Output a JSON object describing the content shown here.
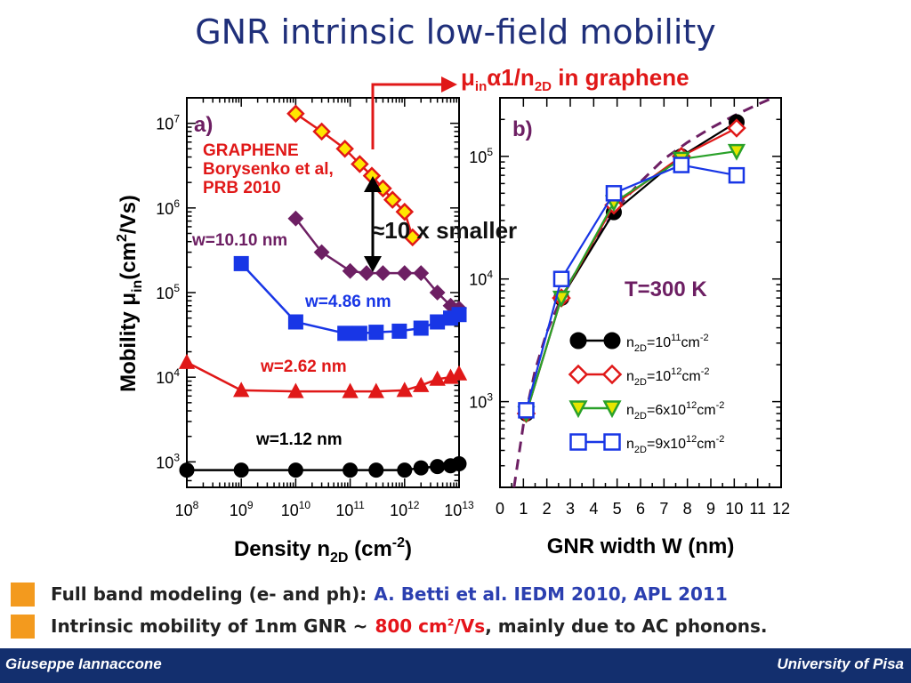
{
  "slide": {
    "title": "GNR intrinsic low-field mobility",
    "annotation_red": {
      "mu": "μ",
      "mu_sub": "in",
      "alpha": "α1/n",
      "n_sub": "2D",
      "tail": " in graphene"
    },
    "annotation_gap": "≈10 x smaller",
    "bullets": [
      {
        "text": "Full band modeling (e- and ph):",
        "highlight": "A. Betti et al. IEDM 2010, APL 2011",
        "highlight_color": "#2b3fb0"
      },
      {
        "text": "Intrinsic mobility of 1nm GNR ~",
        "highlight": "800 cm",
        "highlight_sup": "2",
        "highlight_tail": "/Vs",
        "rest": ", mainly due to AC phonons.",
        "highlight_color": "#e5141a"
      }
    ],
    "footer": {
      "left": "Giuseppe Iannaccone",
      "right": "University of Pisa"
    }
  },
  "colors": {
    "title": "#1f2f7a",
    "footer_bg": "#132f6e",
    "bullet": "#f39a1e",
    "red": "#e01818",
    "maroon": "#6d1f63",
    "blue": "#1836e6",
    "green": "#2aa12a"
  },
  "chart_data": [
    {
      "type": "line",
      "panel_label": "a)",
      "xlabel": "Density n2D (cm-2)",
      "ylabel": "Mobility μin(cm2/Vs)",
      "x_scale": "log",
      "y_scale": "log",
      "xlim": [
        100000000,
        10000000000000
      ],
      "ylim": [
        500,
        20000000
      ],
      "xticks": [
        "10^8",
        "10^9",
        "10^10",
        "10^11",
        "10^12",
        "10^13"
      ],
      "yticks": [
        "10^3",
        "10^4",
        "10^5",
        "10^6",
        "10^7"
      ],
      "inset_text": [
        "GRAPHENE",
        "Borysenko et al,",
        "PRB 2010"
      ],
      "series": [
        {
          "name": "GRAPHENE",
          "color": "#e01818",
          "marker": "diamond-open",
          "fill": "#ffe600",
          "x": [
            10000000000,
            30000000000,
            80000000000,
            150000000000,
            250000000000,
            400000000000,
            600000000000,
            1000000000000,
            1400000000000
          ],
          "y": [
            13000000,
            8000000,
            5000000,
            3300000,
            2400000,
            1700000,
            1250000,
            900000,
            450000
          ]
        },
        {
          "name": "w=10.10 nm",
          "color": "#6d1f63",
          "marker": "diamond",
          "x": [
            10000000000,
            30000000000,
            100000000000,
            200000000000,
            400000000000,
            1000000000000,
            2000000000000,
            4000000000000,
            7000000000000,
            10000000000000
          ],
          "y": [
            750000,
            300000,
            180000,
            170000,
            170000,
            170000,
            170000,
            100000,
            70000,
            65000
          ]
        },
        {
          "name": "w=4.86 nm",
          "color": "#1836e6",
          "marker": "square",
          "x": [
            1000000000,
            10000000000,
            80000000000,
            150000000000,
            300000000000,
            800000000000,
            2000000000000,
            4000000000000,
            7000000000000,
            10000000000000
          ],
          "y": [
            220000,
            45000,
            33000,
            33000,
            34000,
            35000,
            38000,
            45000,
            50000,
            55000
          ]
        },
        {
          "name": "w=2.62 nm",
          "color": "#e01818",
          "marker": "triangle",
          "x": [
            100000000,
            1000000000,
            10000000000,
            100000000000,
            300000000000,
            1000000000000,
            2000000000000,
            4000000000000,
            7000000000000,
            10000000000000
          ],
          "y": [
            15000,
            7000,
            6800,
            6800,
            6800,
            7000,
            8000,
            9500,
            10000,
            11000
          ]
        },
        {
          "name": "w=1.12 nm",
          "color": "#000000",
          "marker": "circle",
          "x": [
            100000000,
            1000000000,
            10000000000,
            100000000000,
            300000000000,
            1000000000000,
            2000000000000,
            4000000000000,
            7000000000000,
            10000000000000
          ],
          "y": [
            800,
            800,
            800,
            800,
            800,
            800,
            850,
            880,
            900,
            950
          ]
        }
      ]
    },
    {
      "type": "line",
      "panel_label": "b)",
      "xlabel": "GNR width W (nm)",
      "x_scale": "linear",
      "y_scale": "log",
      "xlim": [
        0,
        12
      ],
      "ylim": [
        200,
        300000
      ],
      "xticks": [
        "0",
        "1",
        "2",
        "3",
        "4",
        "5",
        "6",
        "7",
        "8",
        "9",
        "10",
        "11",
        "12"
      ],
      "yticks": [
        "10^3",
        "10^4",
        "10^5"
      ],
      "temperature": "T=300 K",
      "legend_position": "bottom-right",
      "series": [
        {
          "name": "n2D=10^11 cm^-2",
          "color": "#000000",
          "marker": "circle",
          "x": [
            1.12,
            2.62,
            4.86,
            7.74,
            10.1
          ],
          "y": [
            800,
            7000,
            35000,
            100000,
            190000
          ]
        },
        {
          "name": "n2D=10^12 cm^-2",
          "color": "#e01818",
          "marker": "diamond-open",
          "x": [
            1.12,
            2.62,
            4.86,
            7.74,
            10.1
          ],
          "y": [
            800,
            7000,
            40000,
            100000,
            170000
          ]
        },
        {
          "name": "n2D=6x10^12 cm^-2",
          "color": "#2aa12a",
          "marker": "triangle-down",
          "fill": "#e6e600",
          "x": [
            1.12,
            2.62,
            4.86,
            7.74,
            10.1
          ],
          "y": [
            800,
            7000,
            42000,
            95000,
            110000
          ]
        },
        {
          "name": "n2D=9x10^12 cm^-2",
          "color": "#1836e6",
          "marker": "square-open",
          "x": [
            1.12,
            2.62,
            4.86,
            7.74,
            10.1
          ],
          "y": [
            850,
            10000,
            50000,
            85000,
            70000
          ]
        }
      ],
      "fit_curve": {
        "color": "#6d1f63",
        "style": "dashed",
        "x": [
          0.6,
          1.0,
          1.5,
          2.0,
          2.62,
          3.0,
          4.0,
          5.0,
          6.0,
          7.0,
          8.0,
          9.0,
          10.0,
          11.0,
          12.0
        ],
        "y": [
          200,
          650,
          1800,
          3700,
          7000,
          9500,
          20000,
          38000,
          62000,
          95000,
          130000,
          170000,
          215000,
          265000,
          320000
        ]
      }
    }
  ]
}
